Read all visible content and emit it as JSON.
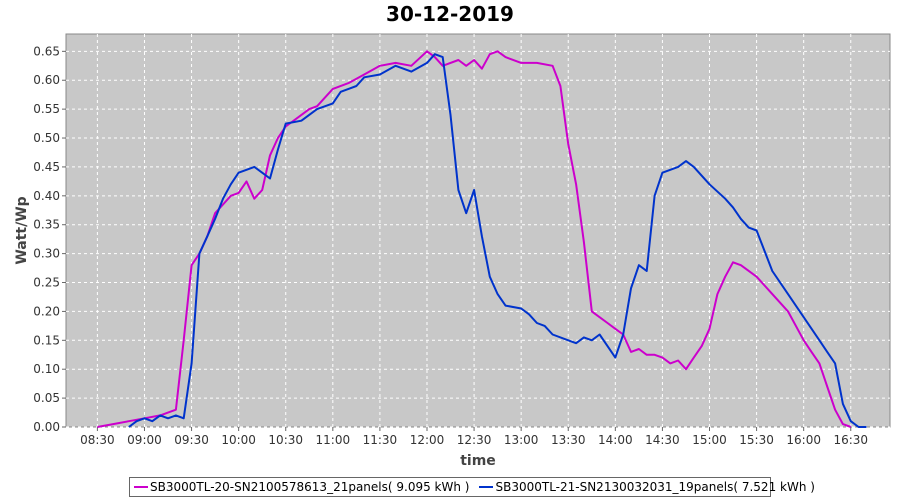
{
  "chart_data": {
    "type": "line",
    "title": "30-12-2019",
    "xlabel": "time",
    "ylabel": "Watt/Wp",
    "xlim": [
      "08:10",
      "16:55"
    ],
    "ylim": [
      0,
      0.68
    ],
    "x_ticks": [
      "08:30",
      "09:00",
      "09:30",
      "10:00",
      "10:30",
      "11:00",
      "11:30",
      "12:00",
      "12:30",
      "13:00",
      "13:30",
      "14:00",
      "14:30",
      "15:00",
      "15:30",
      "16:00",
      "16:30"
    ],
    "y_ticks": [
      0.0,
      0.05,
      0.1,
      0.15,
      0.2,
      0.25,
      0.3,
      0.35,
      0.4,
      0.45,
      0.5,
      0.55,
      0.6,
      0.65
    ],
    "grid": true,
    "legend_position": "bottom",
    "colors": {
      "plot_bg": "#c8c8c8",
      "grid": "#ffffff"
    },
    "series": [
      {
        "name": "SB3000TL-20-SN2100578613_21panels( 9.095 kWh )",
        "color": "#cc00cc",
        "points": [
          [
            "08:30",
            0.0
          ],
          [
            "08:40",
            0.005
          ],
          [
            "08:50",
            0.01
          ],
          [
            "09:00",
            0.015
          ],
          [
            "09:10",
            0.02
          ],
          [
            "09:15",
            0.025
          ],
          [
            "09:20",
            0.03
          ],
          [
            "09:25",
            0.15
          ],
          [
            "09:30",
            0.28
          ],
          [
            "09:35",
            0.3
          ],
          [
            "09:40",
            0.33
          ],
          [
            "09:45",
            0.37
          ],
          [
            "09:50",
            0.385
          ],
          [
            "09:55",
            0.4
          ],
          [
            "10:00",
            0.405
          ],
          [
            "10:05",
            0.425
          ],
          [
            "10:10",
            0.395
          ],
          [
            "10:15",
            0.41
          ],
          [
            "10:20",
            0.47
          ],
          [
            "10:25",
            0.5
          ],
          [
            "10:30",
            0.52
          ],
          [
            "10:40",
            0.54
          ],
          [
            "10:45",
            0.55
          ],
          [
            "10:50",
            0.555
          ],
          [
            "11:00",
            0.585
          ],
          [
            "11:10",
            0.595
          ],
          [
            "11:20",
            0.61
          ],
          [
            "11:30",
            0.625
          ],
          [
            "11:40",
            0.63
          ],
          [
            "11:50",
            0.625
          ],
          [
            "12:00",
            0.65
          ],
          [
            "12:05",
            0.64
          ],
          [
            "12:10",
            0.625
          ],
          [
            "12:20",
            0.635
          ],
          [
            "12:25",
            0.625
          ],
          [
            "12:30",
            0.635
          ],
          [
            "12:35",
            0.62
          ],
          [
            "12:40",
            0.645
          ],
          [
            "12:45",
            0.65
          ],
          [
            "12:50",
            0.64
          ],
          [
            "13:00",
            0.63
          ],
          [
            "13:10",
            0.63
          ],
          [
            "13:20",
            0.625
          ],
          [
            "13:25",
            0.59
          ],
          [
            "13:30",
            0.49
          ],
          [
            "13:35",
            0.42
          ],
          [
            "13:40",
            0.32
          ],
          [
            "13:45",
            0.2
          ],
          [
            "13:50",
            0.19
          ],
          [
            "13:55",
            0.18
          ],
          [
            "14:00",
            0.17
          ],
          [
            "14:05",
            0.16
          ],
          [
            "14:10",
            0.13
          ],
          [
            "14:15",
            0.135
          ],
          [
            "14:20",
            0.125
          ],
          [
            "14:25",
            0.125
          ],
          [
            "14:30",
            0.12
          ],
          [
            "14:35",
            0.11
          ],
          [
            "14:40",
            0.115
          ],
          [
            "14:45",
            0.1
          ],
          [
            "14:50",
            0.12
          ],
          [
            "14:55",
            0.14
          ],
          [
            "15:00",
            0.17
          ],
          [
            "15:05",
            0.23
          ],
          [
            "15:10",
            0.26
          ],
          [
            "15:15",
            0.285
          ],
          [
            "15:20",
            0.28
          ],
          [
            "15:30",
            0.26
          ],
          [
            "15:40",
            0.23
          ],
          [
            "15:50",
            0.2
          ],
          [
            "16:00",
            0.15
          ],
          [
            "16:05",
            0.13
          ],
          [
            "16:10",
            0.11
          ],
          [
            "16:15",
            0.07
          ],
          [
            "16:20",
            0.03
          ],
          [
            "16:25",
            0.005
          ],
          [
            "16:30",
            0.0
          ]
        ]
      },
      {
        "name": "SB3000TL-21-SN2130032031_19panels( 7.521 kWh )",
        "color": "#0033cc",
        "points": [
          [
            "08:50",
            0.0
          ],
          [
            "08:55",
            0.01
          ],
          [
            "09:00",
            0.015
          ],
          [
            "09:05",
            0.01
          ],
          [
            "09:10",
            0.02
          ],
          [
            "09:15",
            0.015
          ],
          [
            "09:20",
            0.02
          ],
          [
            "09:25",
            0.015
          ],
          [
            "09:30",
            0.11
          ],
          [
            "09:35",
            0.3
          ],
          [
            "09:40",
            0.33
          ],
          [
            "09:45",
            0.36
          ],
          [
            "09:50",
            0.395
          ],
          [
            "09:55",
            0.42
          ],
          [
            "10:00",
            0.44
          ],
          [
            "10:05",
            0.445
          ],
          [
            "10:10",
            0.45
          ],
          [
            "10:15",
            0.44
          ],
          [
            "10:20",
            0.43
          ],
          [
            "10:25",
            0.48
          ],
          [
            "10:30",
            0.525
          ],
          [
            "10:40",
            0.53
          ],
          [
            "10:50",
            0.55
          ],
          [
            "11:00",
            0.56
          ],
          [
            "11:05",
            0.58
          ],
          [
            "11:10",
            0.585
          ],
          [
            "11:15",
            0.59
          ],
          [
            "11:20",
            0.605
          ],
          [
            "11:30",
            0.61
          ],
          [
            "11:40",
            0.625
          ],
          [
            "11:50",
            0.615
          ],
          [
            "12:00",
            0.63
          ],
          [
            "12:05",
            0.645
          ],
          [
            "12:10",
            0.64
          ],
          [
            "12:15",
            0.54
          ],
          [
            "12:20",
            0.41
          ],
          [
            "12:25",
            0.37
          ],
          [
            "12:30",
            0.41
          ],
          [
            "12:35",
            0.33
          ],
          [
            "12:40",
            0.26
          ],
          [
            "12:45",
            0.23
          ],
          [
            "12:50",
            0.21
          ],
          [
            "13:00",
            0.205
          ],
          [
            "13:05",
            0.195
          ],
          [
            "13:10",
            0.18
          ],
          [
            "13:15",
            0.175
          ],
          [
            "13:20",
            0.16
          ],
          [
            "13:30",
            0.15
          ],
          [
            "13:35",
            0.145
          ],
          [
            "13:40",
            0.155
          ],
          [
            "13:45",
            0.15
          ],
          [
            "13:50",
            0.16
          ],
          [
            "13:55",
            0.14
          ],
          [
            "14:00",
            0.12
          ],
          [
            "14:05",
            0.16
          ],
          [
            "14:10",
            0.24
          ],
          [
            "14:15",
            0.28
          ],
          [
            "14:20",
            0.27
          ],
          [
            "14:25",
            0.4
          ],
          [
            "14:30",
            0.44
          ],
          [
            "14:35",
            0.445
          ],
          [
            "14:40",
            0.45
          ],
          [
            "14:45",
            0.46
          ],
          [
            "14:50",
            0.45
          ],
          [
            "15:00",
            0.42
          ],
          [
            "15:10",
            0.395
          ],
          [
            "15:15",
            0.38
          ],
          [
            "15:20",
            0.36
          ],
          [
            "15:25",
            0.345
          ],
          [
            "15:30",
            0.34
          ],
          [
            "15:40",
            0.27
          ],
          [
            "15:50",
            0.23
          ],
          [
            "16:00",
            0.19
          ],
          [
            "16:10",
            0.15
          ],
          [
            "16:15",
            0.13
          ],
          [
            "16:20",
            0.11
          ],
          [
            "16:25",
            0.04
          ],
          [
            "16:30",
            0.01
          ],
          [
            "16:35",
            0.0
          ],
          [
            "16:40",
            0.0
          ]
        ]
      }
    ]
  }
}
